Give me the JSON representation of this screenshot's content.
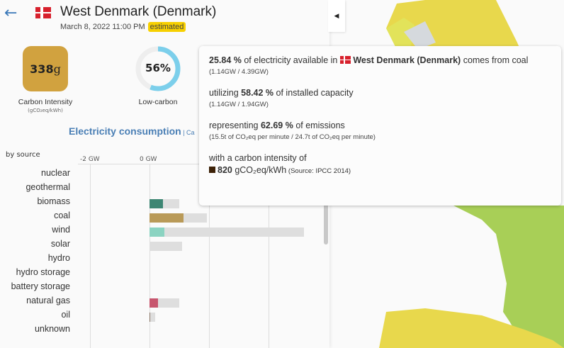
{
  "header": {
    "title": "West Denmark (Denmark)",
    "datetime": "March 8, 2022 11:00 PM",
    "badge": "estimated"
  },
  "metrics": {
    "carbon_intensity": {
      "value": "338",
      "unit": "g",
      "label": "Carbon Intensity",
      "sublabel": "(gCO₂eq/kWh)",
      "color": "#d1a23f"
    },
    "low_carbon": {
      "value": "56%",
      "fraction": 0.56,
      "label": "Low-carbon"
    }
  },
  "section": {
    "title": "Electricity consumption",
    "link": "Ca"
  },
  "chart_data": {
    "type": "bar",
    "orientation": "horizontal",
    "ylabel": "by source",
    "xticks": [
      "-2 GW",
      "0 GW"
    ],
    "xgrid": [
      -2,
      0,
      2,
      4
    ],
    "categories": [
      "nuclear",
      "geothermal",
      "biomass",
      "coal",
      "wind",
      "solar",
      "hydro",
      "hydro storage",
      "battery storage",
      "natural gas",
      "oil",
      "unknown"
    ],
    "series": [
      {
        "role": "production",
        "values": [
          0,
          0,
          0.45,
          1.14,
          0.5,
          0,
          0,
          0,
          0,
          0.29,
          0.02,
          0
        ]
      },
      {
        "role": "capacity",
        "values": [
          0,
          0,
          1.0,
          1.94,
          5.2,
          1.1,
          0,
          0,
          0,
          1.0,
          0.2,
          0
        ]
      }
    ],
    "colors": {
      "biomass": "#3d8673",
      "coal": "#b99a58",
      "wind": "#8bd3c1",
      "natural gas": "#c7566e",
      "oil": "#8a7566",
      "capacity": "#dedede"
    },
    "unit": "GW"
  },
  "tooltip": {
    "line1_pct": "25.84 %",
    "line1_text": " of electricity available in ",
    "line1_zone": "West Denmark (Denmark)",
    "line1_end": " comes from coal",
    "line1_sub": "(1.14GW / 4.39GW)",
    "line2_start": "utilizing ",
    "line2_pct": "58.42 %",
    "line2_end": " of installed capacity",
    "line2_sub": "(1.14GW / 1.94GW)",
    "line3_start": "representing ",
    "line3_pct": "62.69 %",
    "line3_end": " of emissions",
    "line3_sub": "(15.5t of CO₂eq per minute / 24.7t of CO₂eq per minute)",
    "line4": "with a carbon intensity of",
    "ci_value": "820",
    "ci_unit": " gCO₂eq/kWh",
    "ci_source": " (Source: IPCC 2014)",
    "ci_color": "#3d2208"
  },
  "icons": {
    "back": "arrow-left-icon",
    "collapse": "caret-left-icon",
    "flag": "denmark-flag-icon"
  }
}
